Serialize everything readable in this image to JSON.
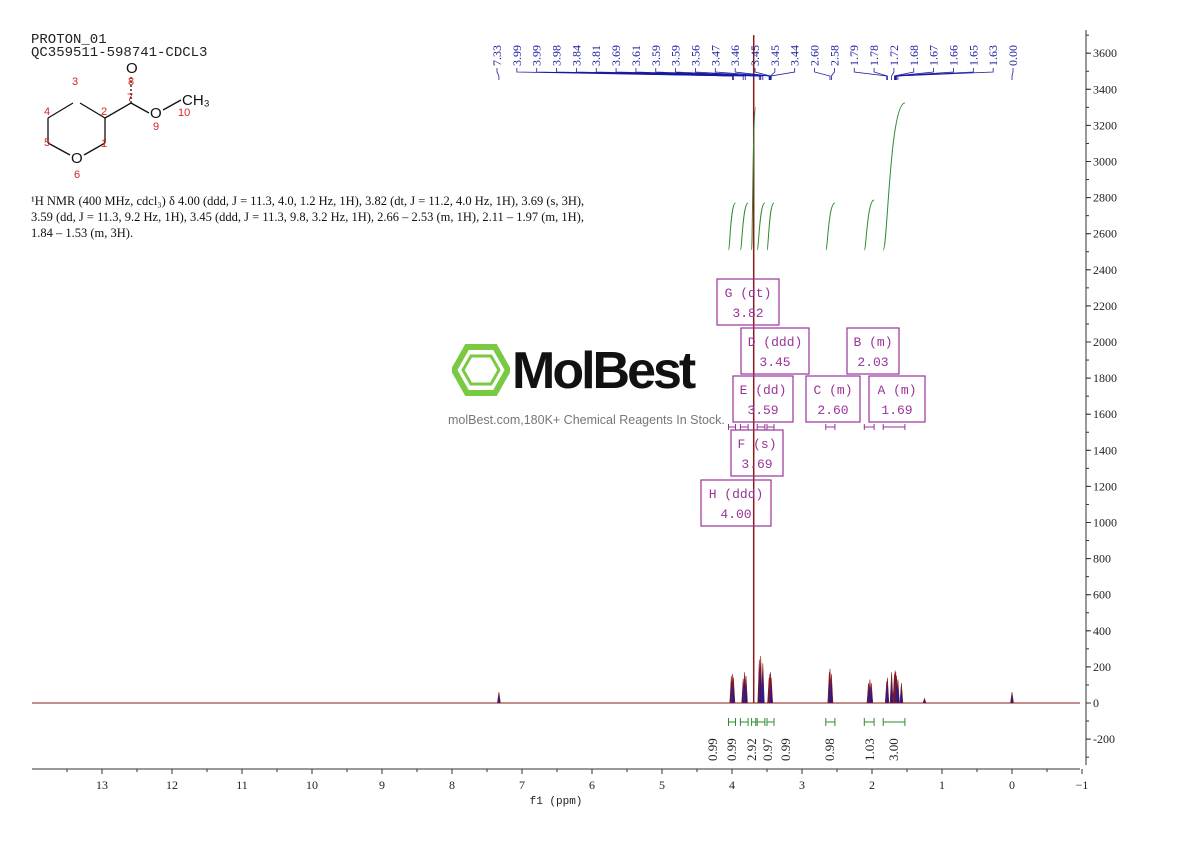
{
  "header": {
    "line1": "PROTON_01",
    "line2": "QC359511-598741-CDCL3"
  },
  "nmr_description": "¹H NMR (400 MHz, cdcl₃) δ 4.00 (ddd, J = 11.3, 4.0, 1.2 Hz, 1H), 3.82 (dt, J = 11.2, 4.0 Hz, 1H), 3.69 (s, 3H), 3.59 (dd, J = 11.3, 9.2 Hz, 1H), 3.45 (ddd, J = 11.3, 9.8, 3.2 Hz, 1H), 2.66 – 2.53 (m, 1H), 2.11 – 1.97 (m, 1H), 1.84 – 1.53 (m, 3H).",
  "watermark": {
    "name": "MolBest",
    "tagline": "molBest.com,180K+ Chemical Reagents In Stock."
  },
  "molecule": {
    "labels": [
      "O",
      "CH₃",
      "O",
      "O"
    ],
    "numbers": [
      "1",
      "2",
      "3",
      "4",
      "5",
      "6",
      "7",
      "8",
      "9",
      "10"
    ]
  },
  "colors": {
    "spectrum": "#8b1a1a",
    "peak_fill": "#1a1aa0",
    "integral": "#2e8b2e",
    "peak_box": "#993399",
    "ref_label": "#1a1aa0",
    "atom_number": "#e02020"
  },
  "chart_data": {
    "type": "line",
    "title": "",
    "xlabel": "f1 (ppm)",
    "ylabel": "",
    "xlim": [
      14,
      -1
    ],
    "ylim": [
      -350,
      3750
    ],
    "x_ticks": [
      13,
      12,
      11,
      10,
      9,
      8,
      7,
      6,
      5,
      4,
      3,
      2,
      1,
      0,
      -1
    ],
    "y_ticks": [
      -200,
      0,
      200,
      400,
      600,
      800,
      1000,
      1200,
      1400,
      1600,
      1800,
      2000,
      2200,
      2400,
      2600,
      2800,
      3000,
      3200,
      3400,
      3600
    ],
    "peaks": [
      {
        "ppm": 7.33,
        "h": 60
      },
      {
        "ppm": 4.01,
        "h": 150
      },
      {
        "ppm": 3.99,
        "h": 160
      },
      {
        "ppm": 3.98,
        "h": 140
      },
      {
        "ppm": 3.84,
        "h": 135
      },
      {
        "ppm": 3.82,
        "h": 170
      },
      {
        "ppm": 3.8,
        "h": 150
      },
      {
        "ppm": 3.69,
        "h": 3700
      },
      {
        "ppm": 3.61,
        "h": 240
      },
      {
        "ppm": 3.59,
        "h": 260
      },
      {
        "ppm": 3.56,
        "h": 220
      },
      {
        "ppm": 3.47,
        "h": 140
      },
      {
        "ppm": 3.46,
        "h": 160
      },
      {
        "ppm": 3.45,
        "h": 170
      },
      {
        "ppm": 3.44,
        "h": 140
      },
      {
        "ppm": 2.61,
        "h": 170
      },
      {
        "ppm": 2.6,
        "h": 190
      },
      {
        "ppm": 2.58,
        "h": 160
      },
      {
        "ppm": 2.05,
        "h": 110
      },
      {
        "ppm": 2.03,
        "h": 130
      },
      {
        "ppm": 2.01,
        "h": 110
      },
      {
        "ppm": 1.79,
        "h": 120
      },
      {
        "ppm": 1.78,
        "h": 140
      },
      {
        "ppm": 1.72,
        "h": 170
      },
      {
        "ppm": 1.68,
        "h": 160
      },
      {
        "ppm": 1.67,
        "h": 180
      },
      {
        "ppm": 1.66,
        "h": 170
      },
      {
        "ppm": 1.65,
        "h": 150
      },
      {
        "ppm": 1.63,
        "h": 130
      },
      {
        "ppm": 1.58,
        "h": 110
      },
      {
        "ppm": 1.25,
        "h": 25
      },
      {
        "ppm": 0.0,
        "h": 60
      }
    ],
    "peak_labels": [
      "7.33",
      "3.99",
      "3.99",
      "3.98",
      "3.84",
      "3.81",
      "3.69",
      "3.61",
      "3.59",
      "3.59",
      "3.56",
      "3.47",
      "3.46",
      "3.45",
      "3.45",
      "3.44",
      "2.60",
      "2.58",
      "1.79",
      "1.78",
      "1.72",
      "1.68",
      "1.67",
      "1.66",
      "1.65",
      "1.63",
      "0.00"
    ],
    "integrals": [
      {
        "from": 4.05,
        "to": 3.95,
        "value": "0.99"
      },
      {
        "from": 3.88,
        "to": 3.77,
        "value": "0.99"
      },
      {
        "from": 3.72,
        "to": 3.66,
        "value": "2.92"
      },
      {
        "from": 3.64,
        "to": 3.53,
        "value": "0.97"
      },
      {
        "from": 3.5,
        "to": 3.4,
        "value": "0.99"
      },
      {
        "from": 2.66,
        "to": 2.53,
        "value": "0.98"
      },
      {
        "from": 2.11,
        "to": 1.97,
        "value": "1.03"
      },
      {
        "from": 1.84,
        "to": 1.53,
        "value": "3.00"
      }
    ],
    "multiplets": [
      {
        "letter": "G",
        "type": "dt",
        "shift": "3.82"
      },
      {
        "letter": "D",
        "type": "ddd",
        "shift": "3.45"
      },
      {
        "letter": "B",
        "type": "m",
        "shift": "2.03"
      },
      {
        "letter": "E",
        "type": "dd",
        "shift": "3.59"
      },
      {
        "letter": "C",
        "type": "m",
        "shift": "2.60"
      },
      {
        "letter": "A",
        "type": "m",
        "shift": "1.69"
      },
      {
        "letter": "F",
        "type": "s",
        "shift": "3.69"
      },
      {
        "letter": "H",
        "type": "ddd",
        "shift": "4.00"
      }
    ]
  }
}
